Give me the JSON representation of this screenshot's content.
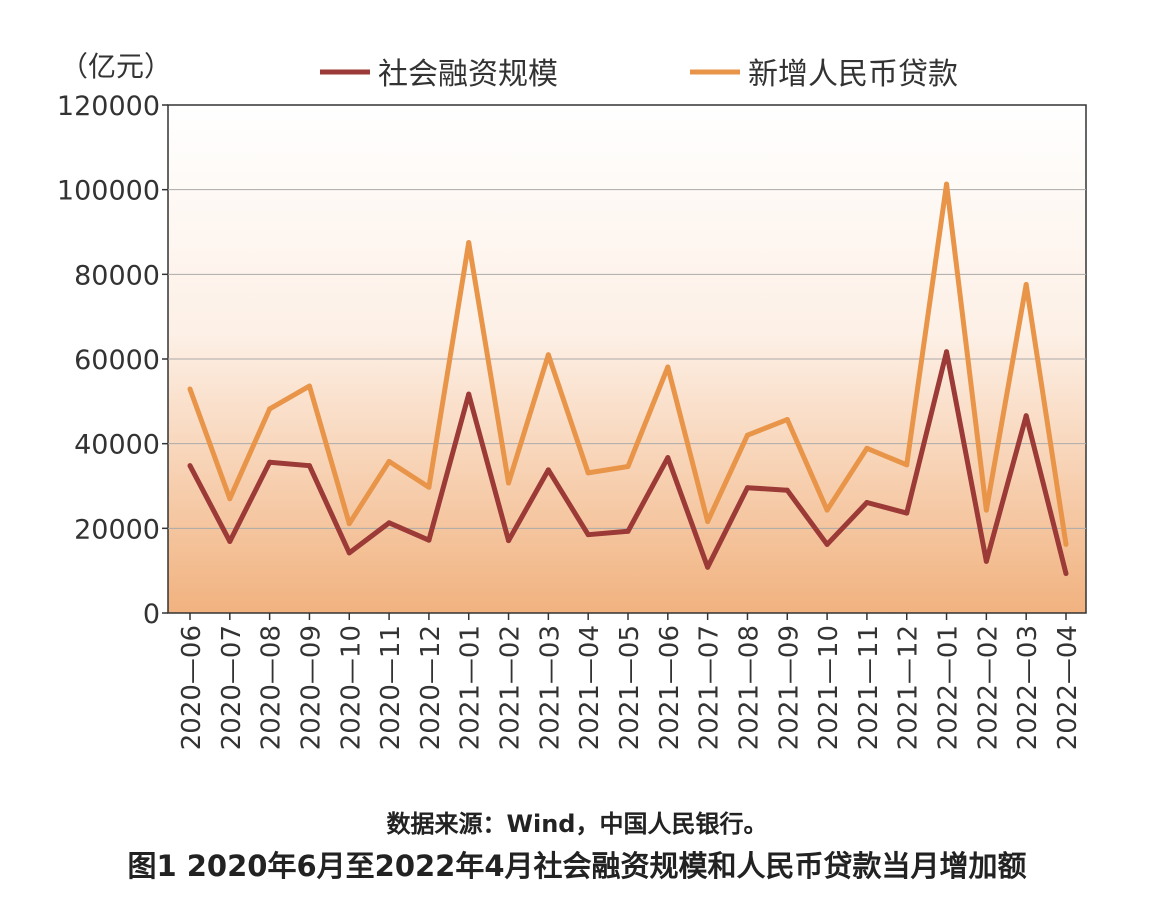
{
  "chart_data": {
    "type": "line",
    "title": "图1  2020年6月至2022年4月社会融资规模和人民币贷款当月增加额",
    "source": "数据来源：Wind，中国人民银行。",
    "ylabel": "（亿元）",
    "xlabel": "",
    "ylim": [
      0,
      120000
    ],
    "yticks": [
      0,
      20000,
      40000,
      60000,
      80000,
      100000,
      120000
    ],
    "grid": true,
    "legend_position": "top",
    "categories": [
      "2020—06",
      "2020—07",
      "2020—08",
      "2020—09",
      "2020—10",
      "2020—11",
      "2020—12",
      "2021—01",
      "2021—02",
      "2021—03",
      "2021—04",
      "2021—05",
      "2021—06",
      "2021—07",
      "2021—08",
      "2021—09",
      "2021—10",
      "2021—11",
      "2021—12",
      "2022—01",
      "2022—02",
      "2022—03",
      "2022—04"
    ],
    "series": [
      {
        "name": "社会融资规模",
        "color": "#9b3a36",
        "values": [
          34800,
          16900,
          35600,
          34800,
          14200,
          21300,
          17200,
          51700,
          17100,
          33800,
          18500,
          19300,
          36700,
          10800,
          29600,
          29000,
          16200,
          26100,
          23600,
          61700,
          12200,
          46600,
          9300
        ]
      },
      {
        "name": "新增人民币贷款",
        "color": "#e8954a",
        "values": [
          52900,
          27000,
          48200,
          53600,
          21100,
          35800,
          29700,
          87500,
          30700,
          61000,
          33100,
          34600,
          58100,
          21600,
          42000,
          45700,
          24300,
          38900,
          35000,
          101300,
          24300,
          77600,
          16200
        ]
      }
    ]
  }
}
